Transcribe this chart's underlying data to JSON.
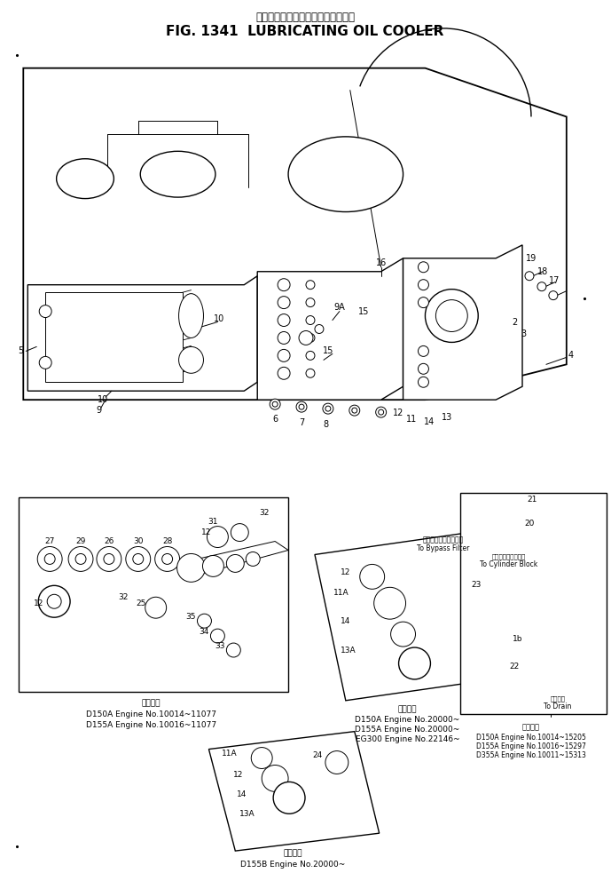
{
  "title_japanese": "ルーブリケーティングオイルクーラ",
  "title_english": "FIG. 1341  LUBRICATING OIL COOLER",
  "bg_color": "#ffffff",
  "figure_width": 6.89,
  "figure_height": 9.83,
  "dpi": 100,
  "inset_left_caption": [
    "適用番号",
    "D150A Engine No.10014~11077",
    "D155A Engine No.10016~11077"
  ],
  "inset_mid_caption": [
    "適用番号",
    "D150A Engine No.20000~",
    "D155A Engine No.20000~",
    "EG300 Engine No.22146~"
  ],
  "inset_mid_bypass_jp": "バイパスフィルターへ",
  "inset_mid_bypass_en": "To Bypass Filter",
  "inset_bot_caption": [
    "適用番号",
    "D155B Engine No.20000~"
  ],
  "inset_right_cyl_jp": "シリンダブロックへ",
  "inset_right_cyl_en": "To Cylinder Block",
  "inset_right_drain_jp": "ドレンへ",
  "inset_right_drain_en": "To Drain",
  "inset_right_caption": [
    "適用番号",
    "D150A Engine No.10014~15205",
    "D155A Engine No.10016~15297",
    "D355A Engine No.10011~15313"
  ]
}
